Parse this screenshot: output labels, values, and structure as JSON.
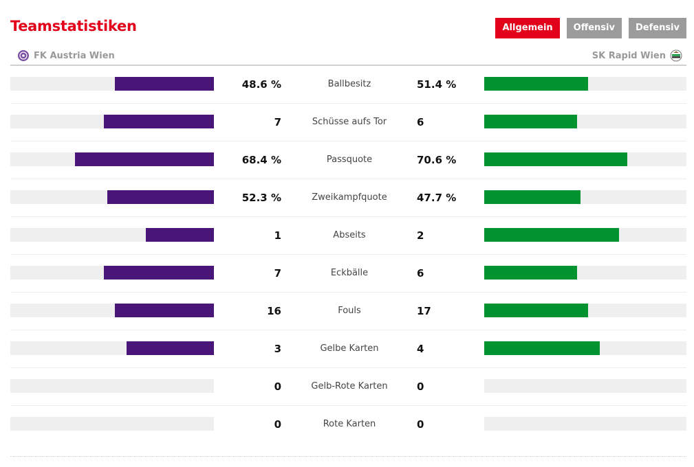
{
  "header": {
    "title": "Teamstatistiken",
    "tabs": [
      "Allgemein",
      "Offensiv",
      "Defensiv"
    ],
    "active_tab": "Allgemein"
  },
  "teams": {
    "home": {
      "name": "FK Austria Wien",
      "color": "#4a1578",
      "crest_icon": "austria-wien-crest-icon"
    },
    "away": {
      "name": "SK Rapid Wien",
      "color": "#00932f",
      "crest_icon": "rapid-wien-crest-icon"
    }
  },
  "colors": {
    "accent": "#e2001a",
    "tab_inactive": "#9b9b9b",
    "track": "#efefef"
  },
  "stats": [
    {
      "label": "Ballbesitz",
      "home": "48.6 %",
      "away": "51.4 %",
      "home_fill": 0.486,
      "away_fill": 0.514
    },
    {
      "label": "Schüsse aufs Tor",
      "home": "7",
      "away": "6",
      "home_fill": 0.54,
      "away_fill": 0.46
    },
    {
      "label": "Passquote",
      "home": "68.4 %",
      "away": "70.6 %",
      "home_fill": 0.684,
      "away_fill": 0.706
    },
    {
      "label": "Zweikampfquote",
      "home": "52.3 %",
      "away": "47.7 %",
      "home_fill": 0.523,
      "away_fill": 0.477
    },
    {
      "label": "Abseits",
      "home": "1",
      "away": "2",
      "home_fill": 0.333,
      "away_fill": 0.667
    },
    {
      "label": "Eckbälle",
      "home": "7",
      "away": "6",
      "home_fill": 0.54,
      "away_fill": 0.46
    },
    {
      "label": "Fouls",
      "home": "16",
      "away": "17",
      "home_fill": 0.485,
      "away_fill": 0.515
    },
    {
      "label": "Gelbe Karten",
      "home": "3",
      "away": "4",
      "home_fill": 0.43,
      "away_fill": 0.57
    },
    {
      "label": "Gelb-Rote Karten",
      "home": "0",
      "away": "0",
      "home_fill": 0,
      "away_fill": 0
    },
    {
      "label": "Rote Karten",
      "home": "0",
      "away": "0",
      "home_fill": 0,
      "away_fill": 0
    }
  ]
}
